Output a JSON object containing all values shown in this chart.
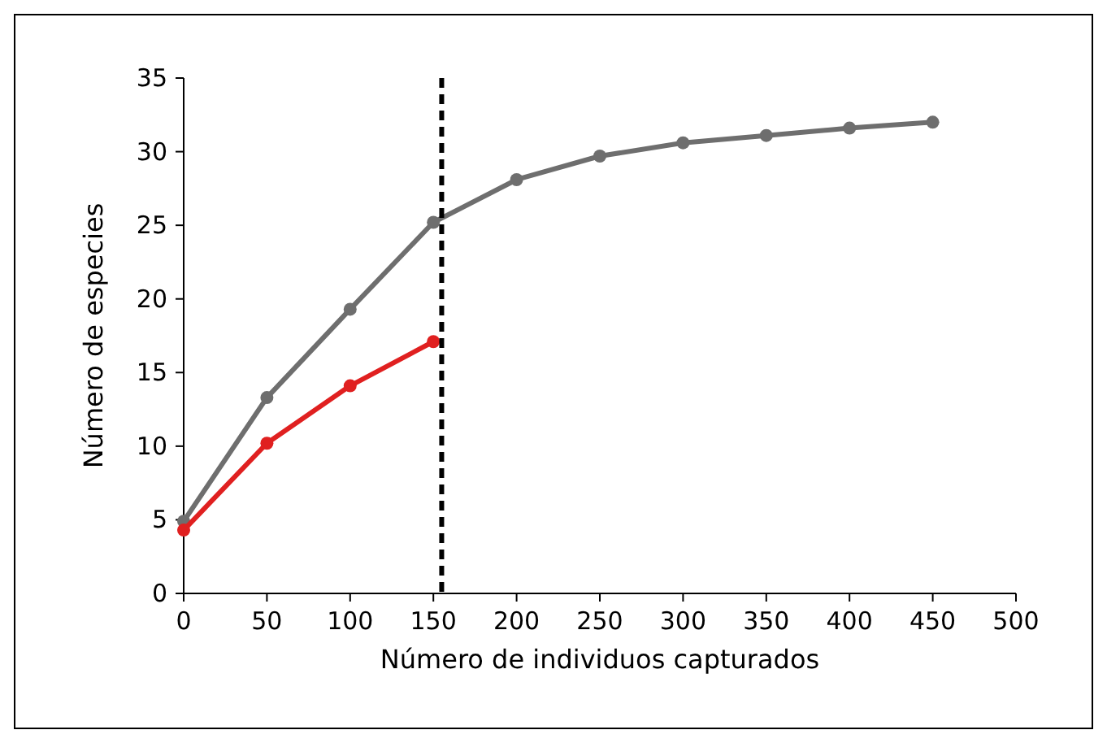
{
  "chart_data": {
    "type": "line",
    "xlabel": "Número de individuos capturados",
    "ylabel": "Número de especies",
    "xlim": [
      0,
      500
    ],
    "xticks": [
      0,
      50,
      100,
      150,
      200,
      250,
      300,
      350,
      400,
      450,
      500
    ],
    "ylim": [
      0,
      35
    ],
    "yticks": [
      0,
      5,
      10,
      15,
      20,
      25,
      30,
      35
    ],
    "marker": "circle",
    "grid": false,
    "series": [
      {
        "color": "#6e6e6e",
        "x": [
          0,
          50,
          100,
          150,
          200,
          250,
          300,
          350,
          400,
          450
        ],
        "values": [
          4.9,
          13.3,
          19.3,
          25.2,
          28.1,
          29.7,
          30.6,
          31.1,
          31.6,
          32
        ]
      },
      {
        "color": "#e02020",
        "x": [
          0,
          50,
          100,
          150
        ],
        "values": [
          4.3,
          10.2,
          14.1,
          17.1
        ]
      }
    ],
    "ref_lines": [
      {
        "axis": "x",
        "value": 155,
        "color": "#000000",
        "line_style": "dashed"
      }
    ]
  }
}
